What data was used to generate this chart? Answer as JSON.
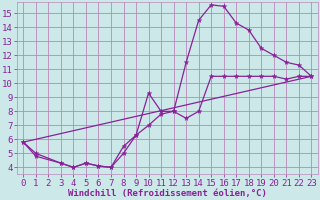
{
  "xlabel": "Windchill (Refroidissement éolien,°C)",
  "background_color": "#cce8e8",
  "grid_color": "#bb88bb",
  "line_color": "#882299",
  "xlim": [
    -0.5,
    23.5
  ],
  "ylim": [
    3.5,
    15.8
  ],
  "xticks": [
    0,
    1,
    2,
    3,
    4,
    5,
    6,
    7,
    8,
    9,
    10,
    11,
    12,
    13,
    14,
    15,
    16,
    17,
    18,
    19,
    20,
    21,
    22,
    23
  ],
  "yticks": [
    4,
    5,
    6,
    7,
    8,
    9,
    10,
    11,
    12,
    13,
    14,
    15
  ],
  "line1_x": [
    0,
    1,
    3,
    4,
    5,
    6,
    7,
    8,
    9,
    10,
    11,
    12,
    13,
    14,
    15,
    16,
    17,
    18,
    19,
    20,
    21,
    22,
    23
  ],
  "line1_y": [
    5.8,
    5.0,
    4.3,
    4.0,
    4.3,
    4.1,
    4.0,
    5.5,
    6.3,
    9.3,
    8.0,
    8.0,
    11.5,
    14.5,
    15.6,
    15.5,
    14.3,
    13.8,
    12.5,
    12.0,
    11.5,
    11.3,
    10.5
  ],
  "line2_x": [
    0,
    1,
    3,
    4,
    5,
    6,
    7,
    8,
    9,
    10,
    11,
    12,
    13,
    14,
    15,
    16,
    17,
    18,
    19,
    20,
    21,
    22,
    23
  ],
  "line2_y": [
    5.8,
    4.8,
    4.3,
    4.0,
    4.3,
    4.1,
    4.0,
    5.0,
    6.3,
    7.0,
    7.8,
    8.0,
    7.5,
    8.0,
    10.5,
    10.5,
    10.5,
    10.5,
    10.5,
    10.5,
    10.3,
    10.5,
    10.5
  ],
  "line3_x": [
    0,
    23
  ],
  "line3_y": [
    5.8,
    10.5
  ],
  "xlabel_fontsize": 6.5,
  "tick_fontsize": 6.5
}
